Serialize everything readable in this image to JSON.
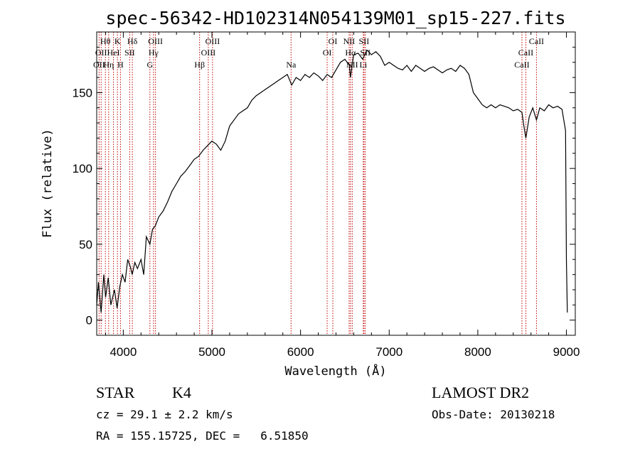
{
  "chart_data": {
    "type": "line",
    "title": "spec-56342-HD102314N054139M01_sp15-227.fits",
    "xlabel": "Wavelength (Å)",
    "ylabel": "Flux (relative)",
    "xlim": [
      3700,
      9100
    ],
    "ylim": [
      -10,
      190
    ],
    "x_ticks": [
      4000,
      5000,
      6000,
      7000,
      8000,
      9000
    ],
    "y_ticks": [
      0,
      50,
      100,
      150
    ],
    "grid": false,
    "series": [
      {
        "x": [
          3700,
          3720,
          3750,
          3780,
          3800,
          3830,
          3860,
          3900,
          3930,
          3960,
          3990,
          4020,
          4050,
          4080,
          4100,
          4130,
          4160,
          4200,
          4230,
          4260,
          4300,
          4330,
          4360,
          4400,
          4450,
          4500,
          4550,
          4600,
          4650,
          4700,
          4750,
          4800,
          4850,
          4900,
          4950,
          5000,
          5050,
          5100,
          5150,
          5200,
          5250,
          5300,
          5350,
          5400,
          5450,
          5500,
          5550,
          5600,
          5650,
          5700,
          5750,
          5800,
          5850,
          5900,
          5950,
          6000,
          6050,
          6100,
          6150,
          6200,
          6250,
          6300,
          6350,
          6400,
          6450,
          6500,
          6550,
          6563,
          6600,
          6650,
          6700,
          6750,
          6800,
          6850,
          6900,
          6950,
          7000,
          7050,
          7100,
          7150,
          7200,
          7250,
          7300,
          7350,
          7400,
          7450,
          7500,
          7550,
          7600,
          7650,
          7700,
          7750,
          7800,
          7850,
          7900,
          7950,
          8000,
          8050,
          8100,
          8150,
          8200,
          8250,
          8300,
          8350,
          8400,
          8450,
          8498,
          8520,
          8542,
          8580,
          8620,
          8662,
          8700,
          8750,
          8800,
          8850,
          8900,
          8950,
          8990,
          9000,
          9010
        ],
        "y": [
          10,
          25,
          5,
          30,
          15,
          28,
          10,
          20,
          8,
          22,
          30,
          25,
          40,
          35,
          30,
          38,
          34,
          40,
          30,
          55,
          50,
          60,
          62,
          68,
          72,
          78,
          85,
          90,
          95,
          98,
          102,
          106,
          108,
          112,
          115,
          118,
          116,
          112,
          118,
          128,
          132,
          136,
          138,
          140,
          145,
          148,
          150,
          152,
          154,
          156,
          158,
          160,
          162,
          155,
          160,
          158,
          162,
          160,
          163,
          161,
          158,
          162,
          160,
          165,
          170,
          172,
          168,
          160,
          175,
          176,
          172,
          178,
          175,
          177,
          174,
          168,
          170,
          168,
          166,
          165,
          168,
          164,
          168,
          166,
          164,
          166,
          167,
          165,
          163,
          165,
          166,
          164,
          168,
          166,
          162,
          150,
          146,
          142,
          140,
          142,
          140,
          142,
          141,
          140,
          138,
          139,
          137,
          128,
          120,
          134,
          140,
          132,
          140,
          138,
          142,
          140,
          141,
          139,
          125,
          40,
          5
        ]
      }
    ],
    "spectral_lines": [
      {
        "x": 3727,
        "label": "OII",
        "row": 2
      },
      {
        "x": 3750,
        "label": "OII",
        "row": 1
      },
      {
        "x": 3798,
        "label": "Hθ",
        "row": 0
      },
      {
        "x": 3835,
        "label": "Hη",
        "row": 2
      },
      {
        "x": 3889,
        "label": "HeI",
        "row": 1
      },
      {
        "x": 3934,
        "label": "K",
        "row": 0
      },
      {
        "x": 3968,
        "label": "H",
        "row": 2
      },
      {
        "x": 4072,
        "label": "SII",
        "row": 1
      },
      {
        "x": 4102,
        "label": "Hδ",
        "row": 0
      },
      {
        "x": 4300,
        "label": "G",
        "row": 2
      },
      {
        "x": 4341,
        "label": "Hγ",
        "row": 1
      },
      {
        "x": 4363,
        "label": "OIII",
        "row": 0
      },
      {
        "x": 4861,
        "label": "Hβ",
        "row": 2
      },
      {
        "x": 4959,
        "label": "OIII",
        "row": 1
      },
      {
        "x": 5007,
        "label": "OIII",
        "row": 0
      },
      {
        "x": 5893,
        "label": "Na",
        "row": 2
      },
      {
        "x": 6300,
        "label": "OI",
        "row": 1
      },
      {
        "x": 6364,
        "label": "OI",
        "row": 0
      },
      {
        "x": 6548,
        "label": "NII",
        "row": 0
      },
      {
        "x": 6563,
        "label": "Hα",
        "row": 1
      },
      {
        "x": 6583,
        "label": "NII",
        "row": 2
      },
      {
        "x": 6708,
        "label": "Li",
        "row": 2
      },
      {
        "x": 6716,
        "label": "SII",
        "row": 0
      },
      {
        "x": 6731,
        "label": "SII",
        "row": 1
      },
      {
        "x": 8498,
        "label": "CaII",
        "row": 2
      },
      {
        "x": 8542,
        "label": "CaII",
        "row": 1
      },
      {
        "x": 8662,
        "label": "CaII",
        "row": 0
      }
    ]
  },
  "info": {
    "object_class": "STAR",
    "subclass": "K4",
    "survey": "LAMOST DR2",
    "redshift_text": "cz = 29.1 ± 2.2 km/s",
    "obs_date": "Obs-Date: 20130218",
    "coords": "RA = 155.15725, DEC =   6.51850"
  },
  "colors": {
    "spectrum": "#000000",
    "line_markers": "#c00000",
    "axes": "#000000"
  }
}
